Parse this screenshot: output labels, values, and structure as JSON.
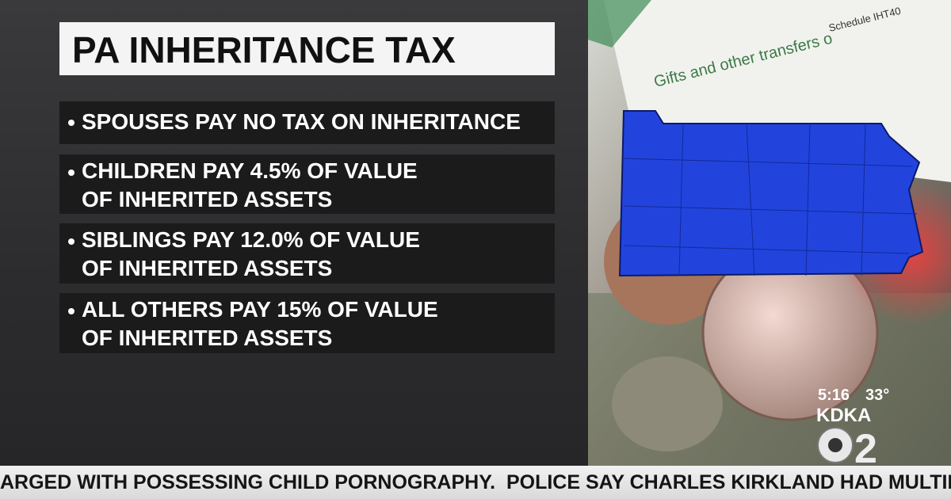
{
  "header": {
    "title": "PA INHERITANCE TAX"
  },
  "bullets": [
    {
      "lines": [
        "SPOUSES PAY NO TAX ON INHERITANCE"
      ]
    },
    {
      "lines": [
        "CHILDREN PAY 4.5% OF VALUE",
        "OF INHERITED ASSETS"
      ]
    },
    {
      "lines": [
        "SIBLINGS PAY 12.0% OF VALUE",
        "OF INHERITED ASSETS"
      ]
    },
    {
      "lines": [
        "ALL OTHERS PAY 15% OF VALUE",
        "OF INHERITED ASSETS"
      ]
    }
  ],
  "background_image": {
    "form_title": "Gifts and other transfers o",
    "form_code": "Schedule IHT40"
  },
  "station_bug": {
    "time": "5:16",
    "temperature": "33°",
    "station": "KDKA",
    "channel": "2"
  },
  "ticker": {
    "text": "ARGED WITH POSSESSING CHILD PORNOGRAPHY.  POLICE SAY CHARLES KIRKLAND HAD MULTIPLE CHILD PO"
  }
}
